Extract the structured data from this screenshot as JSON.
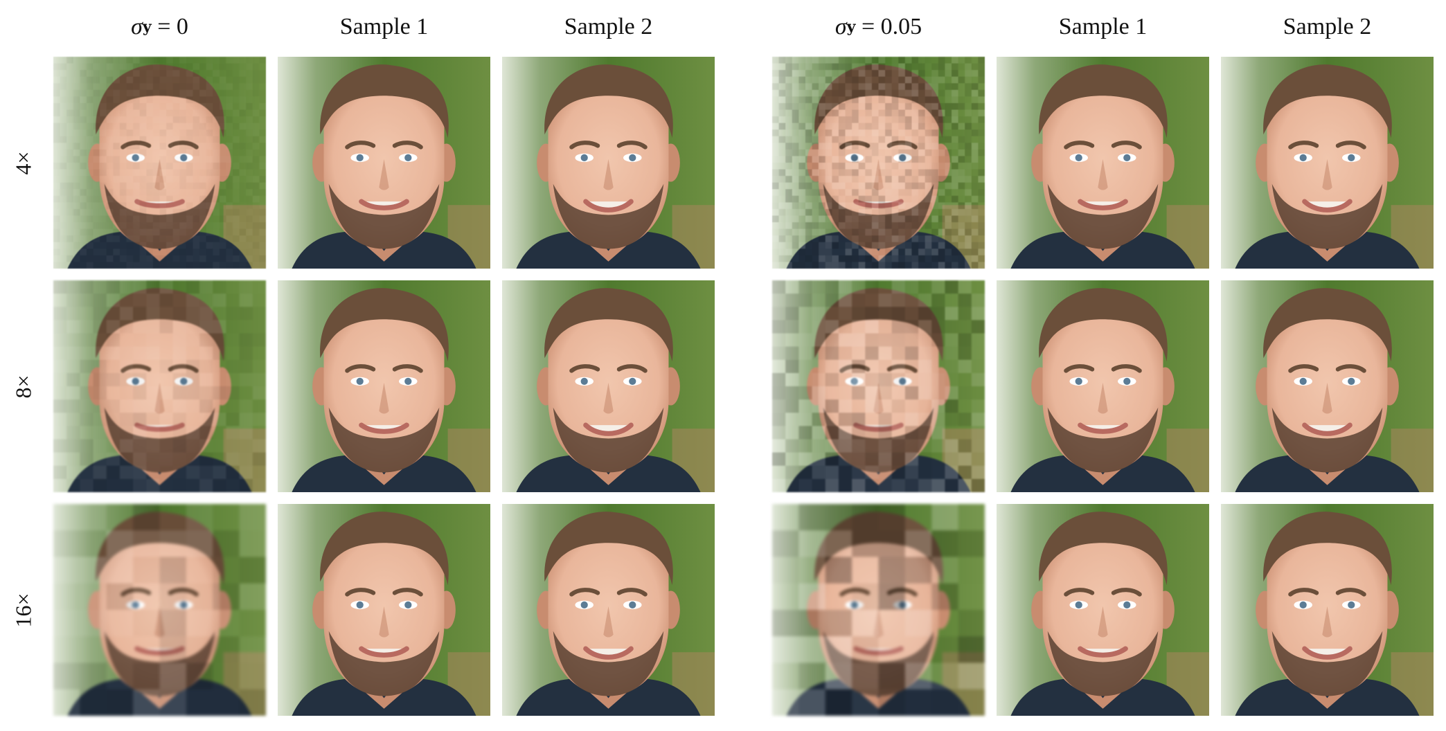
{
  "columns": [
    {
      "type": "sigma",
      "symbol": "σ",
      "subscript": "y",
      "relation": "= 0"
    },
    {
      "type": "text",
      "label": "Sample 1"
    },
    {
      "type": "text",
      "label": "Sample 2"
    },
    {
      "type": "sigma",
      "symbol": "σ",
      "subscript": "y",
      "relation": "= 0.05"
    },
    {
      "type": "text",
      "label": "Sample 1"
    },
    {
      "type": "text",
      "label": "Sample 2"
    }
  ],
  "rows": [
    {
      "label": "4×"
    },
    {
      "label": "8×"
    },
    {
      "label": "16×"
    }
  ],
  "palette": {
    "background_green": "#4f7a2e",
    "background_light": "#dfe6d6",
    "skin": "#e9b69b",
    "skin_shadow": "#c88c6f",
    "hair": "#6b4f3a",
    "beard": "#5a4233",
    "shirt": "#233040",
    "lips": "#b86a60",
    "eyes": "#5c7c95"
  }
}
